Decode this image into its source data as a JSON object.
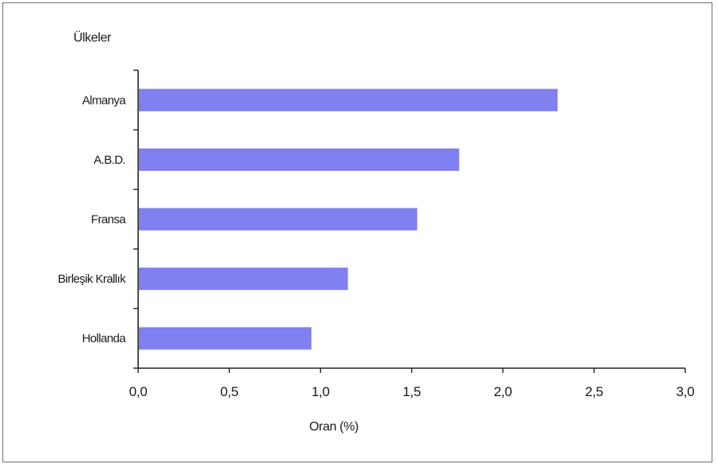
{
  "chart_data": {
    "type": "bar",
    "orientation": "horizontal",
    "categories": [
      "Almanya",
      "A.B.D.",
      "Fransa",
      "Birleşik Krallık",
      "Hollanda"
    ],
    "values": [
      2.3,
      1.76,
      1.53,
      1.15,
      0.95
    ],
    "xlabel": "Oran (%)",
    "ylabel": "Ülkeler",
    "xlim": [
      0,
      3.0
    ],
    "xticks": [
      "0,0",
      "0,5",
      "1,0",
      "1,5",
      "2,0",
      "2,5",
      "3,0"
    ],
    "bar_color": "#8080f0",
    "grid": false,
    "legend": "none"
  }
}
